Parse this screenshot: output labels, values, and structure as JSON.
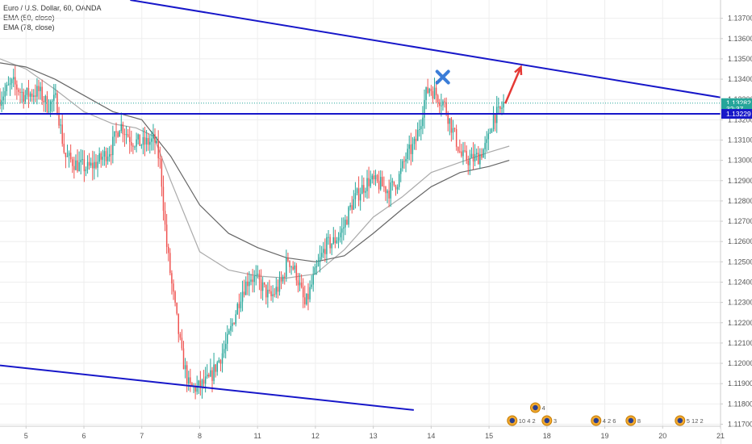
{
  "chart_data": {
    "type": "candlestick",
    "title": "Euro / U.S. Dollar, 60, OANDA",
    "indicators": [
      {
        "name": "EMA (50, close)",
        "color": "#aaaaaa"
      },
      {
        "name": "EMA (78, close)",
        "color": "#666666"
      }
    ],
    "x_ticks": [
      {
        "label": "5",
        "x": 5
      },
      {
        "label": "6",
        "x": 6
      },
      {
        "label": "7",
        "x": 7
      },
      {
        "label": "8",
        "x": 8
      },
      {
        "label": "11",
        "x": 9
      },
      {
        "label": "12",
        "x": 10
      },
      {
        "label": "13",
        "x": 11
      },
      {
        "label": "14",
        "x": 12
      },
      {
        "label": "15",
        "x": 13
      },
      {
        "label": "18",
        "x": 14
      },
      {
        "label": "19",
        "x": 15
      },
      {
        "label": "20",
        "x": 16
      },
      {
        "label": "21",
        "x": 17
      }
    ],
    "x_range": [
      4.55,
      17.0
    ],
    "y_range": [
      1.1169,
      1.1379
    ],
    "y_ticks": [
      "1.13700",
      "1.13600",
      "1.13500",
      "1.13400",
      "1.13300",
      "1.13200",
      "1.13100",
      "1.13000",
      "1.12900",
      "1.12800",
      "1.12700",
      "1.12600",
      "1.12500",
      "1.12400",
      "1.12300",
      "1.12200",
      "1.12100",
      "1.12000",
      "1.11900",
      "1.11800",
      "1.11700"
    ],
    "price_tags": [
      {
        "label": "1.13282",
        "value": 1.13282,
        "color": "#26a69a"
      },
      {
        "label": "32:37",
        "value": 1.13253,
        "color": "#26a69a"
      },
      {
        "label": "1.13229",
        "value": 1.13229,
        "color": "#1717c9"
      }
    ],
    "candle_anchors": [
      [
        4.55,
        1.133
      ],
      [
        4.8,
        1.1338
      ],
      [
        5.0,
        1.1332
      ],
      [
        5.25,
        1.1334
      ],
      [
        5.4,
        1.1327
      ],
      [
        5.55,
        1.133
      ],
      [
        5.7,
        1.1302
      ],
      [
        5.9,
        1.1298
      ],
      [
        6.1,
        1.1296
      ],
      [
        6.3,
        1.13
      ],
      [
        6.5,
        1.1306
      ],
      [
        6.65,
        1.1318
      ],
      [
        6.85,
        1.131
      ],
      [
        7.05,
        1.1308
      ],
      [
        7.25,
        1.131
      ],
      [
        7.35,
        1.1298
      ],
      [
        7.45,
        1.126
      ],
      [
        7.55,
        1.1238
      ],
      [
        7.72,
        1.1204
      ],
      [
        7.85,
        1.1188
      ],
      [
        8.0,
        1.1188
      ],
      [
        8.2,
        1.1192
      ],
      [
        8.5,
        1.121
      ],
      [
        8.75,
        1.1235
      ],
      [
        8.9,
        1.1243
      ],
      [
        9.05,
        1.124
      ],
      [
        9.25,
        1.1232
      ],
      [
        9.45,
        1.124
      ],
      [
        9.55,
        1.1252
      ],
      [
        9.7,
        1.1244
      ],
      [
        9.85,
        1.1228
      ],
      [
        10.0,
        1.1242
      ],
      [
        10.2,
        1.1258
      ],
      [
        10.35,
        1.126
      ],
      [
        10.5,
        1.1266
      ],
      [
        10.65,
        1.1278
      ],
      [
        10.8,
        1.1285
      ],
      [
        10.95,
        1.129
      ],
      [
        11.15,
        1.1288
      ],
      [
        11.3,
        1.1285
      ],
      [
        11.45,
        1.129
      ],
      [
        11.6,
        1.1302
      ],
      [
        11.75,
        1.1308
      ],
      [
        11.85,
        1.132
      ],
      [
        11.93,
        1.1332
      ],
      [
        12.0,
        1.1336
      ],
      [
        12.1,
        1.1333
      ],
      [
        12.25,
        1.1328
      ],
      [
        12.4,
        1.1315
      ],
      [
        12.55,
        1.1302
      ],
      [
        12.7,
        1.13
      ],
      [
        12.85,
        1.1302
      ],
      [
        13.0,
        1.1308
      ],
      [
        13.1,
        1.1322
      ],
      [
        13.2,
        1.1323
      ],
      [
        13.28,
        1.1328
      ]
    ],
    "ema50": [
      [
        4.55,
        1.135
      ],
      [
        5.0,
        1.1345
      ],
      [
        5.5,
        1.1335
      ],
      [
        6.0,
        1.1324
      ],
      [
        6.5,
        1.1318
      ],
      [
        6.9,
        1.1316
      ],
      [
        7.2,
        1.1312
      ],
      [
        7.5,
        1.129
      ],
      [
        8.0,
        1.1255
      ],
      [
        8.5,
        1.1246
      ],
      [
        9.0,
        1.1243
      ],
      [
        9.5,
        1.1242
      ],
      [
        10.0,
        1.1244
      ],
      [
        10.5,
        1.1256
      ],
      [
        11.0,
        1.1272
      ],
      [
        11.5,
        1.1282
      ],
      [
        12.0,
        1.1294
      ],
      [
        12.5,
        1.1299
      ],
      [
        13.0,
        1.1304
      ],
      [
        13.35,
        1.1307
      ]
    ],
    "ema78": [
      [
        4.55,
        1.1348
      ],
      [
        5.0,
        1.1346
      ],
      [
        5.5,
        1.134
      ],
      [
        6.0,
        1.1332
      ],
      [
        6.5,
        1.1324
      ],
      [
        7.0,
        1.132
      ],
      [
        7.5,
        1.1302
      ],
      [
        8.0,
        1.1278
      ],
      [
        8.5,
        1.1264
      ],
      [
        9.0,
        1.1257
      ],
      [
        9.5,
        1.1252
      ],
      [
        10.0,
        1.125
      ],
      [
        10.5,
        1.1253
      ],
      [
        11.0,
        1.1264
      ],
      [
        11.5,
        1.1276
      ],
      [
        12.0,
        1.1287
      ],
      [
        12.5,
        1.1294
      ],
      [
        13.0,
        1.1297
      ],
      [
        13.35,
        1.13
      ]
    ],
    "trendlines": [
      {
        "name": "upper-trendline",
        "from": [
          6.8,
          1.1379
        ],
        "to": [
          17.0,
          1.1331
        ],
        "color": "#1717c9"
      },
      {
        "name": "support-line",
        "from": [
          4.55,
          1.13229
        ],
        "to": [
          17.0,
          1.13229
        ],
        "color": "#1717c9"
      },
      {
        "name": "lower-trendline",
        "from": [
          4.55,
          1.1199
        ],
        "to": [
          11.7,
          1.1177
        ],
        "color": "#1717c9"
      }
    ],
    "dotted_line": {
      "value": 1.13282,
      "color": "#26a69a"
    },
    "annotations": [
      {
        "type": "cross",
        "x": 12.2,
        "y": 1.1341,
        "color": "#3b7dd8"
      },
      {
        "type": "arrow",
        "from": [
          13.28,
          1.1328
        ],
        "to": [
          13.55,
          1.1346
        ],
        "color": "#e53935"
      }
    ],
    "event_icons": [
      {
        "x": 13.4,
        "y_offset": 0,
        "label": "10 4 2"
      },
      {
        "x": 13.8,
        "y_offset": -16,
        "label": "4"
      },
      {
        "x": 14.0,
        "y_offset": 0,
        "label": "3"
      },
      {
        "x": 14.85,
        "y_offset": 0,
        "label": "4 2 6"
      },
      {
        "x": 15.45,
        "y_offset": 0,
        "label": "8"
      },
      {
        "x": 16.3,
        "y_offset": 0,
        "label": "5 12 2"
      }
    ]
  },
  "colors": {
    "bull": "#26a69a",
    "bear": "#ef5350",
    "grid": "#eeeeee",
    "axis_line": "#cccccc"
  }
}
